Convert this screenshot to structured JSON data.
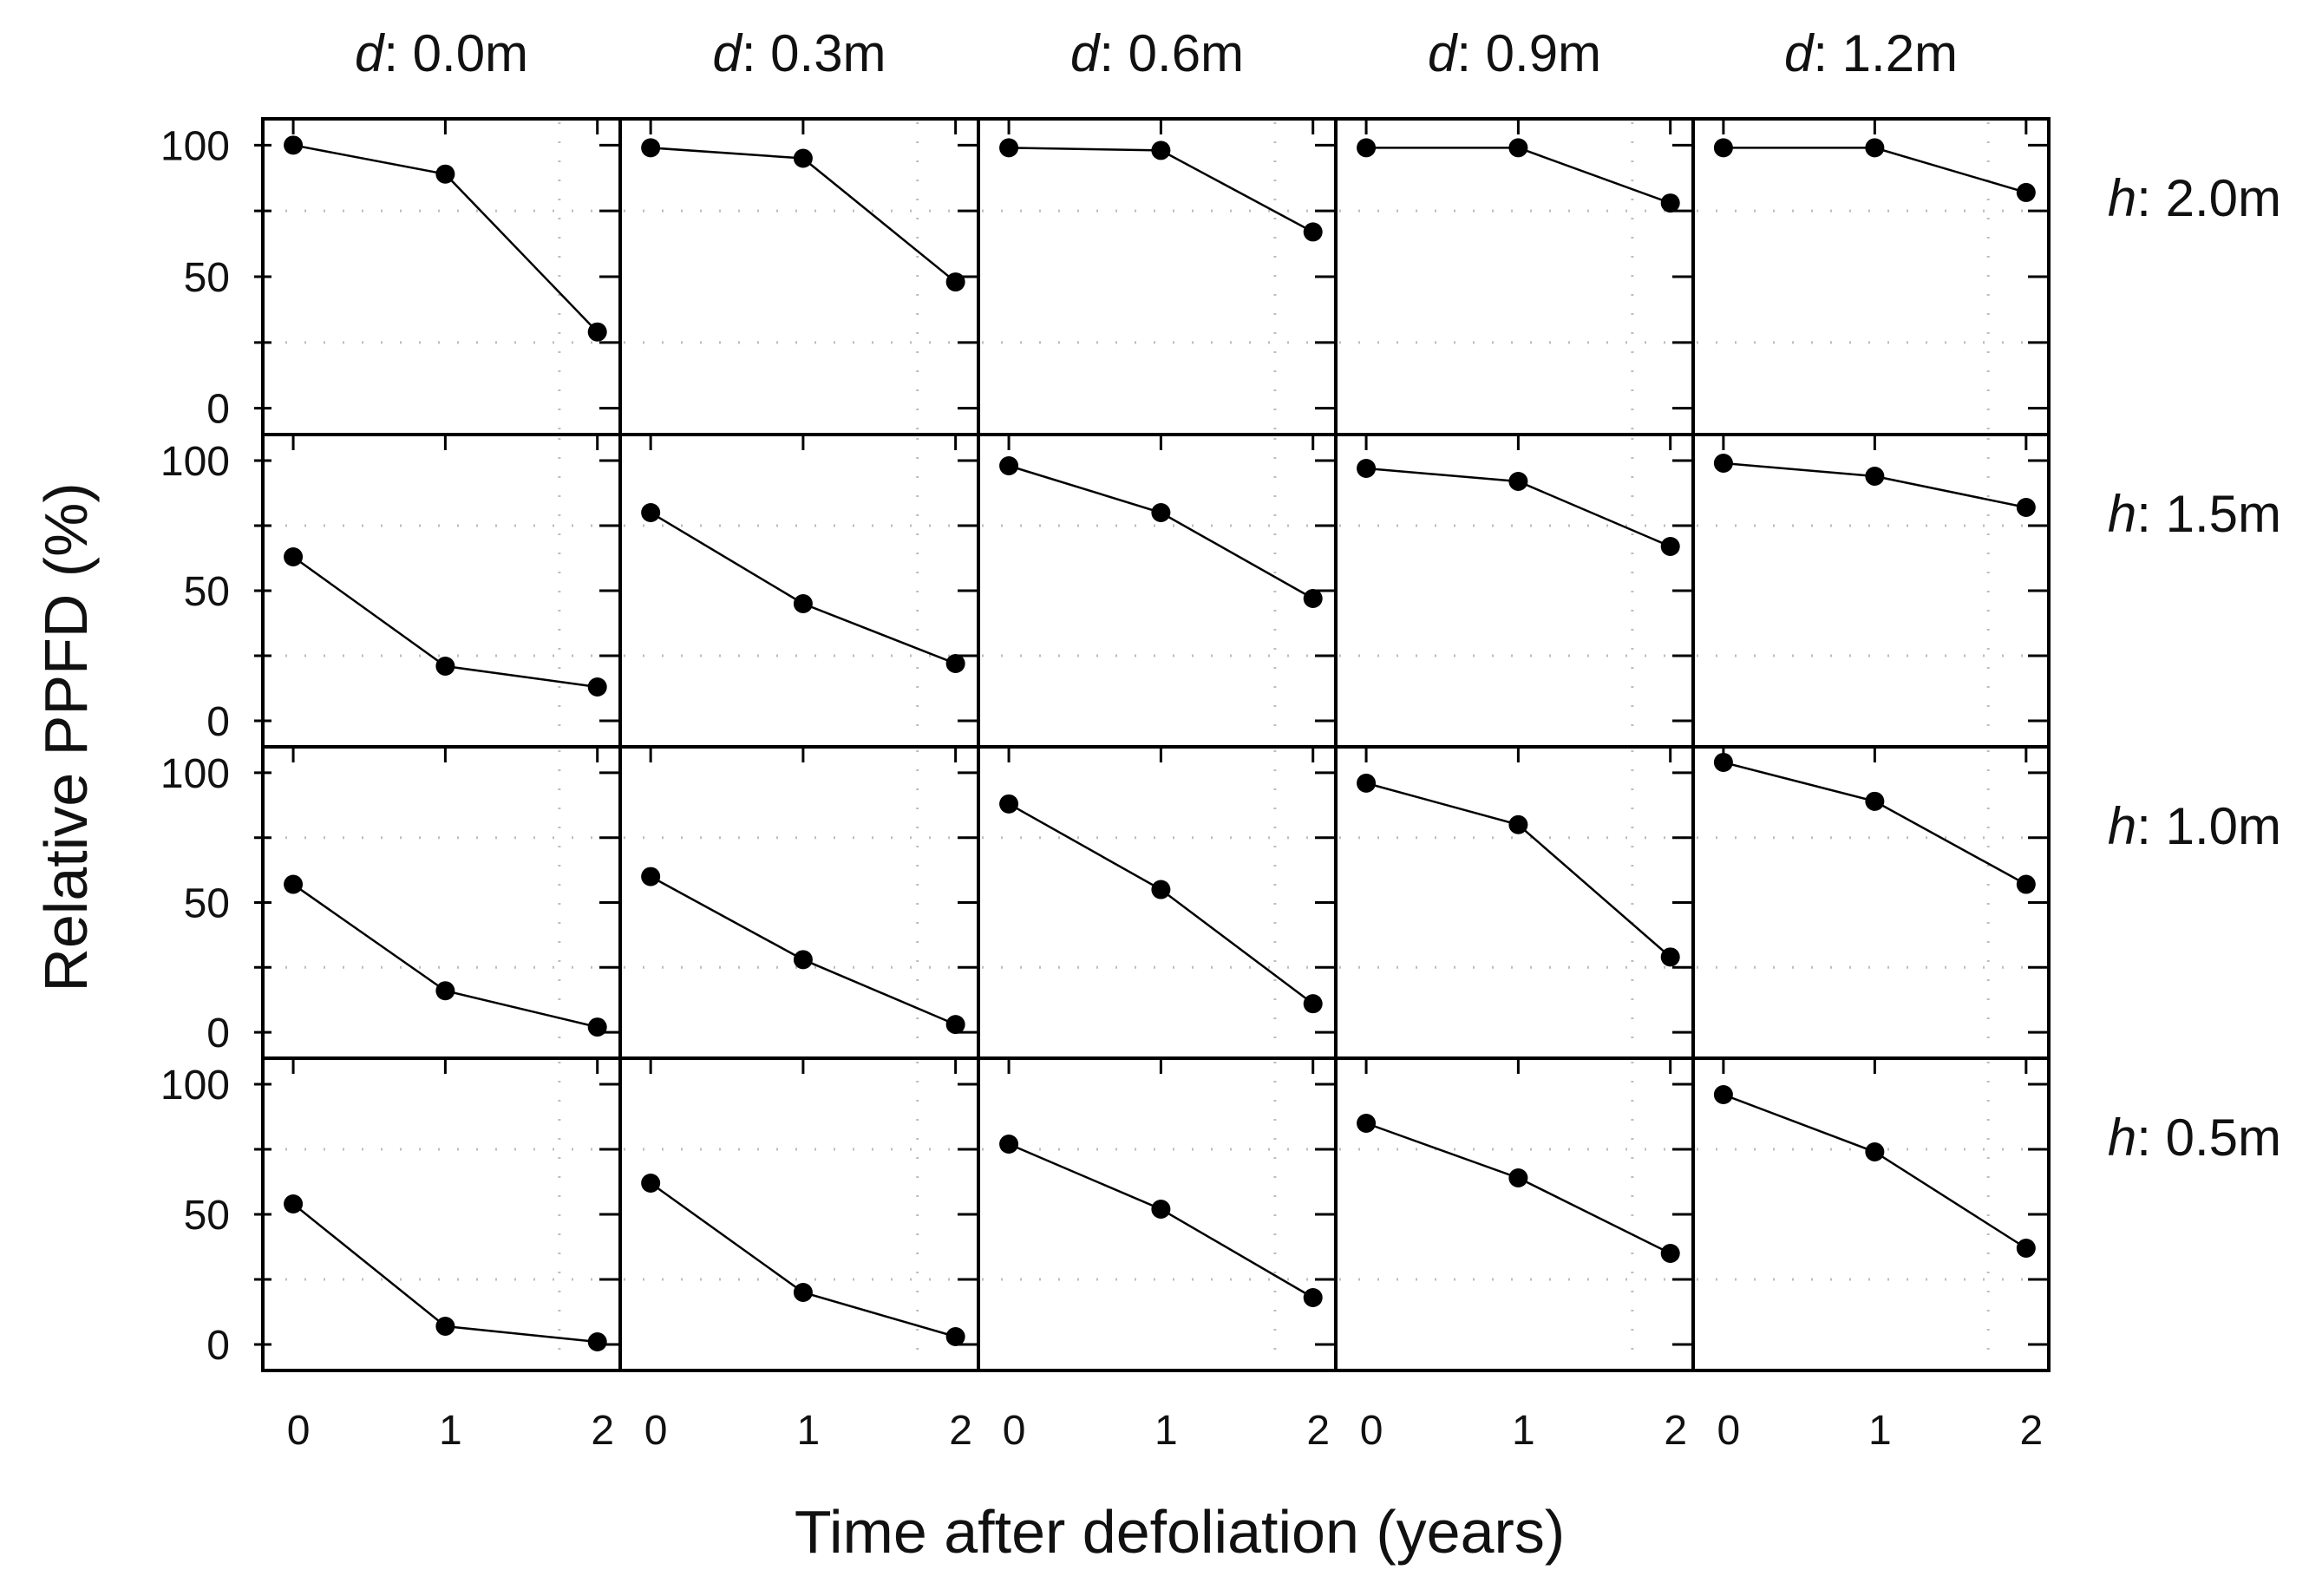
{
  "chart_data": {
    "type": "line",
    "layout": "small-multiples grid",
    "xlabel": "Time after defoliation (years)",
    "ylabel": "Relative PPFD (%)",
    "x": [
      0,
      1,
      2
    ],
    "x_tick_labels": [
      "0",
      "1",
      "2"
    ],
    "y_tick_labels": [
      "0",
      "50",
      "100"
    ],
    "xlim": [
      -0.2,
      2.15
    ],
    "ylim": [
      -10,
      110
    ],
    "columns": [
      {
        "var": "d",
        "rest": ": 0.0m"
      },
      {
        "var": "d",
        "rest": ": 0.3m"
      },
      {
        "var": "d",
        "rest": ": 0.6m"
      },
      {
        "var": "d",
        "rest": ": 0.9m"
      },
      {
        "var": "d",
        "rest": ": 1.2m"
      }
    ],
    "rows": [
      {
        "var": "h",
        "rest": ": 2.0m"
      },
      {
        "var": "h",
        "rest": ": 1.5m"
      },
      {
        "var": "h",
        "rest": ": 1.0m"
      },
      {
        "var": "h",
        "rest": ": 0.5m"
      }
    ],
    "panels": [
      [
        [
          100,
          89,
          29
        ],
        [
          99,
          95,
          48
        ],
        [
          99,
          98,
          67
        ],
        [
          99,
          99,
          78
        ],
        [
          99,
          99,
          82
        ]
      ],
      [
        [
          63,
          21,
          13
        ],
        [
          80,
          45,
          22
        ],
        [
          98,
          80,
          47
        ],
        [
          97,
          92,
          67
        ],
        [
          99,
          94,
          82
        ]
      ],
      [
        [
          57,
          16,
          2
        ],
        [
          60,
          28,
          3
        ],
        [
          88,
          55,
          11
        ],
        [
          96,
          80,
          29
        ],
        [
          104,
          89,
          57
        ]
      ],
      [
        [
          54,
          7,
          1
        ],
        [
          62,
          20,
          3
        ],
        [
          77,
          52,
          18
        ],
        [
          85,
          64,
          35
        ],
        [
          96,
          74,
          37
        ]
      ]
    ]
  }
}
